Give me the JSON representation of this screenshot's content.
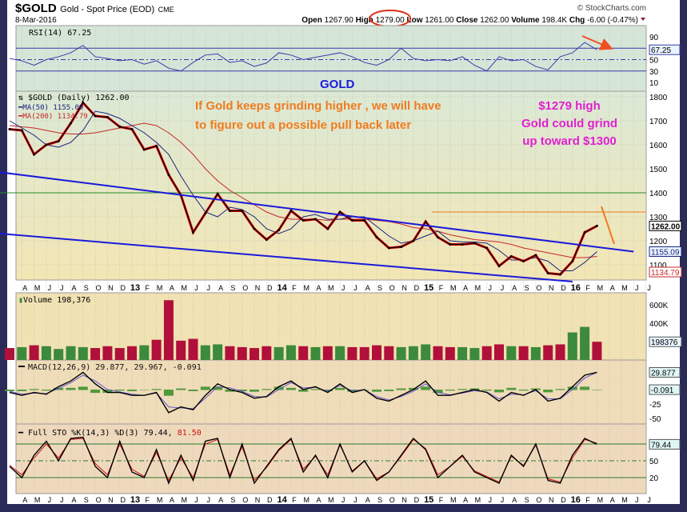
{
  "header": {
    "symbol": "$GOLD",
    "name": "Gold - Spot Price (EOD)",
    "exchange": "CME",
    "date": "8-Mar-2016",
    "watermark": "© StockCharts.com",
    "open_label": "Open",
    "open": "1267.90",
    "high_label": "High",
    "high": "1279.00",
    "low_label": "Low",
    "low": "1261.00",
    "close_label": "Close",
    "close": "1262.00",
    "volume_label": "Volume",
    "volume": "198.4K",
    "chg_label": "Chg",
    "chg": "-6.00 (-0.47%)"
  },
  "annotations": {
    "gold_title": "GOLD",
    "note_line1": "If Gold keeps grinding higher , we will have",
    "note_line2": "to figure out a possible pull back later",
    "high_line1": "$1279 high",
    "high_line2": "Gold could grind",
    "high_line3": "up toward $1300"
  },
  "colors": {
    "price": "#000000",
    "down": "#e00000",
    "ma50": "#1a237e",
    "ma200": "#c62828",
    "channel": "#1a1adb",
    "rsi": "#3a3aa8",
    "annot_orange": "#f07b1e",
    "annot_magenta": "#e020d0",
    "vol_up": "#3c8a3c",
    "vol_down": "#b0103a",
    "macd": "#000000",
    "signal": "#6a5acd",
    "hist": "#4f9a3c",
    "sto_k": "#000000",
    "sto_d": "#d01010"
  },
  "chart_data": [
    {
      "type": "line",
      "title": "RSI(14) 67.25",
      "label": "RSI(14)",
      "value": "67.25",
      "ylim": [
        0,
        100
      ],
      "y_ticks": [
        "90",
        "50",
        "30",
        "10"
      ],
      "levels": [
        70,
        50,
        30
      ],
      "x": "monthly Mar-2012..Mar-2016",
      "values": [
        52,
        48,
        40,
        50,
        55,
        62,
        75,
        55,
        52,
        48,
        50,
        42,
        48,
        35,
        30,
        45,
        58,
        60,
        45,
        48,
        38,
        44,
        62,
        58,
        50,
        54,
        58,
        62,
        55,
        45,
        40,
        50,
        70,
        52,
        48,
        50,
        48,
        55,
        40,
        30,
        55,
        48,
        50,
        38,
        32,
        55,
        62,
        80,
        67.25
      ]
    },
    {
      "type": "line",
      "title": "$GOLD (Daily) 1262.00",
      "label": "$GOLD (Daily)",
      "value": "1262.00",
      "ma50_label": "MA(50)",
      "ma50_value": "1155.09",
      "ma200_label": "MA(200)",
      "ma200_value": "1134.79",
      "ylim": [
        1000,
        1830
      ],
      "y_ticks": [
        "1800",
        "1700",
        "1600",
        "1500",
        "1400",
        "1300",
        "1200",
        "1100"
      ],
      "last_badge": "1262.00",
      "x_labels": [
        "A",
        "M",
        "J",
        "J",
        "A",
        "S",
        "O",
        "N",
        "D",
        "13",
        "F",
        "M",
        "A",
        "M",
        "J",
        "J",
        "A",
        "S",
        "O",
        "N",
        "D",
        "14",
        "F",
        "M",
        "A",
        "M",
        "J",
        "J",
        "A",
        "S",
        "O",
        "N",
        "D",
        "15",
        "F",
        "M",
        "A",
        "M",
        "J",
        "J",
        "A",
        "S",
        "O",
        "N",
        "D",
        "16",
        "F",
        "M",
        "A",
        "M",
        "J",
        "J"
      ],
      "close": [
        1665,
        1660,
        1560,
        1600,
        1615,
        1690,
        1775,
        1720,
        1715,
        1675,
        1665,
        1580,
        1595,
        1475,
        1390,
        1235,
        1315,
        1395,
        1325,
        1325,
        1250,
        1205,
        1245,
        1325,
        1285,
        1290,
        1250,
        1320,
        1285,
        1285,
        1215,
        1170,
        1175,
        1200,
        1280,
        1215,
        1185,
        1185,
        1190,
        1170,
        1095,
        1135,
        1115,
        1140,
        1065,
        1060,
        1115,
        1235,
        1262
      ],
      "ma50": [
        1700,
        1670,
        1640,
        1600,
        1590,
        1610,
        1660,
        1740,
        1730,
        1710,
        1680,
        1650,
        1610,
        1560,
        1470,
        1390,
        1320,
        1300,
        1340,
        1330,
        1300,
        1250,
        1230,
        1250,
        1300,
        1310,
        1290,
        1290,
        1300,
        1300,
        1260,
        1220,
        1190,
        1200,
        1220,
        1240,
        1200,
        1195,
        1195,
        1190,
        1160,
        1120,
        1120,
        1130,
        1115,
        1075,
        1075,
        1110,
        1155
      ],
      "ma200": [
        1680,
        1675,
        1670,
        1660,
        1650,
        1645,
        1645,
        1650,
        1660,
        1670,
        1680,
        1690,
        1680,
        1650,
        1610,
        1560,
        1500,
        1450,
        1410,
        1380,
        1350,
        1320,
        1300,
        1290,
        1290,
        1290,
        1285,
        1290,
        1290,
        1290,
        1285,
        1280,
        1270,
        1255,
        1250,
        1240,
        1225,
        1215,
        1205,
        1200,
        1195,
        1185,
        1170,
        1160,
        1150,
        1140,
        1130,
        1130,
        1135
      ],
      "channel_upper": [
        [
          -1,
          1487
        ],
        [
          51,
          1155
        ]
      ],
      "channel_lower": [
        [
          -2,
          1235
        ],
        [
          46,
          1030
        ]
      ],
      "resistance_1400": 1400,
      "resistance_1320": 1320
    },
    {
      "type": "bar",
      "title": "Volume 198,376",
      "label": "Volume",
      "value": "198,376",
      "y_ticks": [
        "600K",
        "400K"
      ],
      "last_badge": "198376",
      "values": [
        130,
        140,
        160,
        150,
        120,
        150,
        140,
        130,
        150,
        130,
        150,
        160,
        220,
        650,
        210,
        230,
        160,
        170,
        150,
        140,
        130,
        150,
        140,
        160,
        150,
        140,
        150,
        150,
        140,
        140,
        160,
        150,
        140,
        150,
        170,
        150,
        140,
        140,
        130,
        150,
        170,
        150,
        150,
        140,
        160,
        170,
        300,
        360,
        198.376
      ],
      "up": [
        0,
        1,
        0,
        1,
        1,
        1,
        1,
        0,
        0,
        0,
        0,
        1,
        0,
        0,
        0,
        0,
        1,
        1,
        0,
        0,
        0,
        0,
        1,
        1,
        0,
        1,
        0,
        1,
        0,
        0,
        0,
        0,
        1,
        1,
        1,
        0,
        0,
        1,
        1,
        0,
        0,
        1,
        0,
        1,
        0,
        0,
        1,
        1,
        0
      ]
    },
    {
      "type": "line",
      "title": "MACD(12,26,9) 29.877, 29.967, -0.091",
      "label": "MACD(12,26,9)",
      "macd_value": "29.877",
      "signal_value": "29.967",
      "hist_value": "-0.091",
      "y_ticks": [
        "-25",
        "-50"
      ],
      "badges": [
        "29.877",
        "-0.091"
      ],
      "macd": [
        -5,
        -10,
        -5,
        -8,
        5,
        15,
        30,
        10,
        -5,
        -5,
        -10,
        -10,
        -5,
        -40,
        -30,
        -35,
        -10,
        10,
        0,
        -5,
        -15,
        -12,
        5,
        15,
        0,
        5,
        -5,
        10,
        -5,
        0,
        -15,
        -20,
        -10,
        0,
        15,
        -10,
        -10,
        -5,
        0,
        -5,
        -20,
        -5,
        -10,
        0,
        -20,
        -15,
        5,
        25,
        29.877
      ],
      "signal": [
        -3,
        -8,
        -6,
        -7,
        2,
        12,
        25,
        15,
        0,
        -4,
        -8,
        -10,
        -6,
        -30,
        -32,
        -33,
        -15,
        5,
        3,
        -3,
        -12,
        -13,
        0,
        12,
        3,
        4,
        -3,
        7,
        -2,
        0,
        -12,
        -18,
        -12,
        -3,
        10,
        -5,
        -9,
        -6,
        -2,
        -4,
        -16,
        -8,
        -9,
        -2,
        -16,
        -16,
        0,
        20,
        29.967
      ]
    },
    {
      "type": "line",
      "title": "Full STO %K(14,3) %D(3) 79.44, 81.50",
      "label": "Full STO %K(14,3) %D(3)",
      "k_value": "79.44",
      "d_value": "81.50",
      "levels": [
        80,
        50,
        20
      ],
      "y_ticks": [
        "50",
        "20"
      ],
      "last_badge": "79.44",
      "k": [
        40,
        20,
        60,
        85,
        50,
        90,
        92,
        40,
        20,
        85,
        30,
        20,
        70,
        10,
        60,
        15,
        85,
        90,
        20,
        80,
        10,
        40,
        70,
        90,
        30,
        60,
        20,
        80,
        30,
        50,
        15,
        30,
        60,
        90,
        70,
        20,
        40,
        60,
        30,
        20,
        10,
        60,
        40,
        80,
        15,
        10,
        60,
        90,
        79.44
      ],
      "d": [
        42,
        25,
        55,
        80,
        55,
        88,
        90,
        45,
        25,
        80,
        35,
        22,
        65,
        15,
        55,
        20,
        80,
        88,
        25,
        75,
        15,
        38,
        68,
        88,
        35,
        58,
        25,
        78,
        32,
        50,
        18,
        30,
        58,
        88,
        72,
        25,
        40,
        58,
        32,
        22,
        12,
        58,
        42,
        78,
        18,
        12,
        55,
        88,
        81.5
      ]
    }
  ]
}
